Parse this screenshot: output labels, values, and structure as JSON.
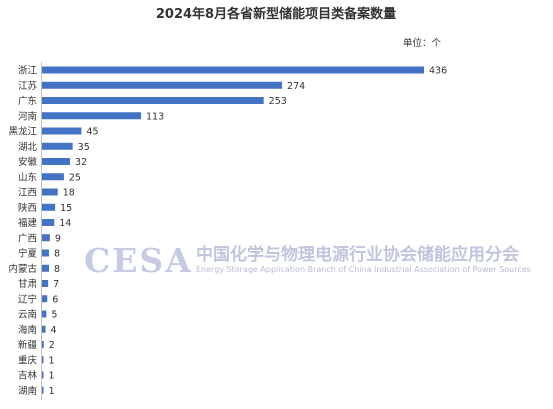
{
  "chart_data": {
    "type": "bar",
    "orientation": "horizontal",
    "title": "2024年8月各省新型储能项目类备案数量",
    "unit_label": "单位：个",
    "categories": [
      "浙江",
      "江苏",
      "广东",
      "河南",
      "黑龙江",
      "湖北",
      "安徽",
      "山东",
      "江西",
      "陕西",
      "福建",
      "广西",
      "宁夏",
      "内蒙古",
      "甘肃",
      "辽宁",
      "云南",
      "海南",
      "新疆",
      "重庆",
      "吉林",
      "湖南"
    ],
    "values": [
      436,
      274,
      253,
      113,
      45,
      35,
      32,
      25,
      18,
      15,
      14,
      9,
      8,
      8,
      7,
      6,
      5,
      4,
      2,
      1,
      1,
      1
    ],
    "xlim": [
      0,
      436
    ],
    "bar_color": "#4472c4",
    "grid": false,
    "legend": "none"
  },
  "watermark": {
    "logo": "CESA",
    "text_cn": "中国化学与物理电源行业协会储能应用分会",
    "text_en": "Energy Storage Application Branch of China Industrial Association of Power Sources",
    "color": "#b5bcd6"
  }
}
